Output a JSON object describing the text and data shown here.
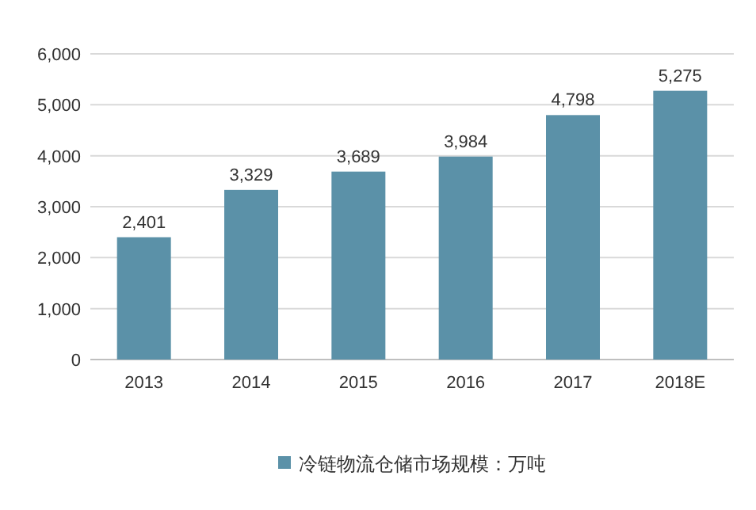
{
  "chart_data": {
    "type": "bar",
    "categories": [
      "2013",
      "2014",
      "2015",
      "2016",
      "2017",
      "2018E"
    ],
    "series": [
      {
        "name": "冷链物流仓储市场规模：万吨",
        "color": "#5b91a8",
        "values": [
          2401,
          3329,
          3689,
          3984,
          4798,
          5275
        ],
        "value_labels": [
          "2,401",
          "3,329",
          "3,689",
          "3,984",
          "4,798",
          "5,275"
        ]
      }
    ],
    "ylim": [
      0,
      6000
    ],
    "yticks": [
      {
        "value": 0,
        "label": "0"
      },
      {
        "value": 1000,
        "label": "1,000"
      },
      {
        "value": 2000,
        "label": "2,000"
      },
      {
        "value": 3000,
        "label": "3,000"
      },
      {
        "value": 4000,
        "label": "4,000"
      },
      {
        "value": 5000,
        "label": "5,000"
      },
      {
        "value": 6000,
        "label": "6,000"
      }
    ],
    "grid": "y",
    "legend": "bottom"
  }
}
